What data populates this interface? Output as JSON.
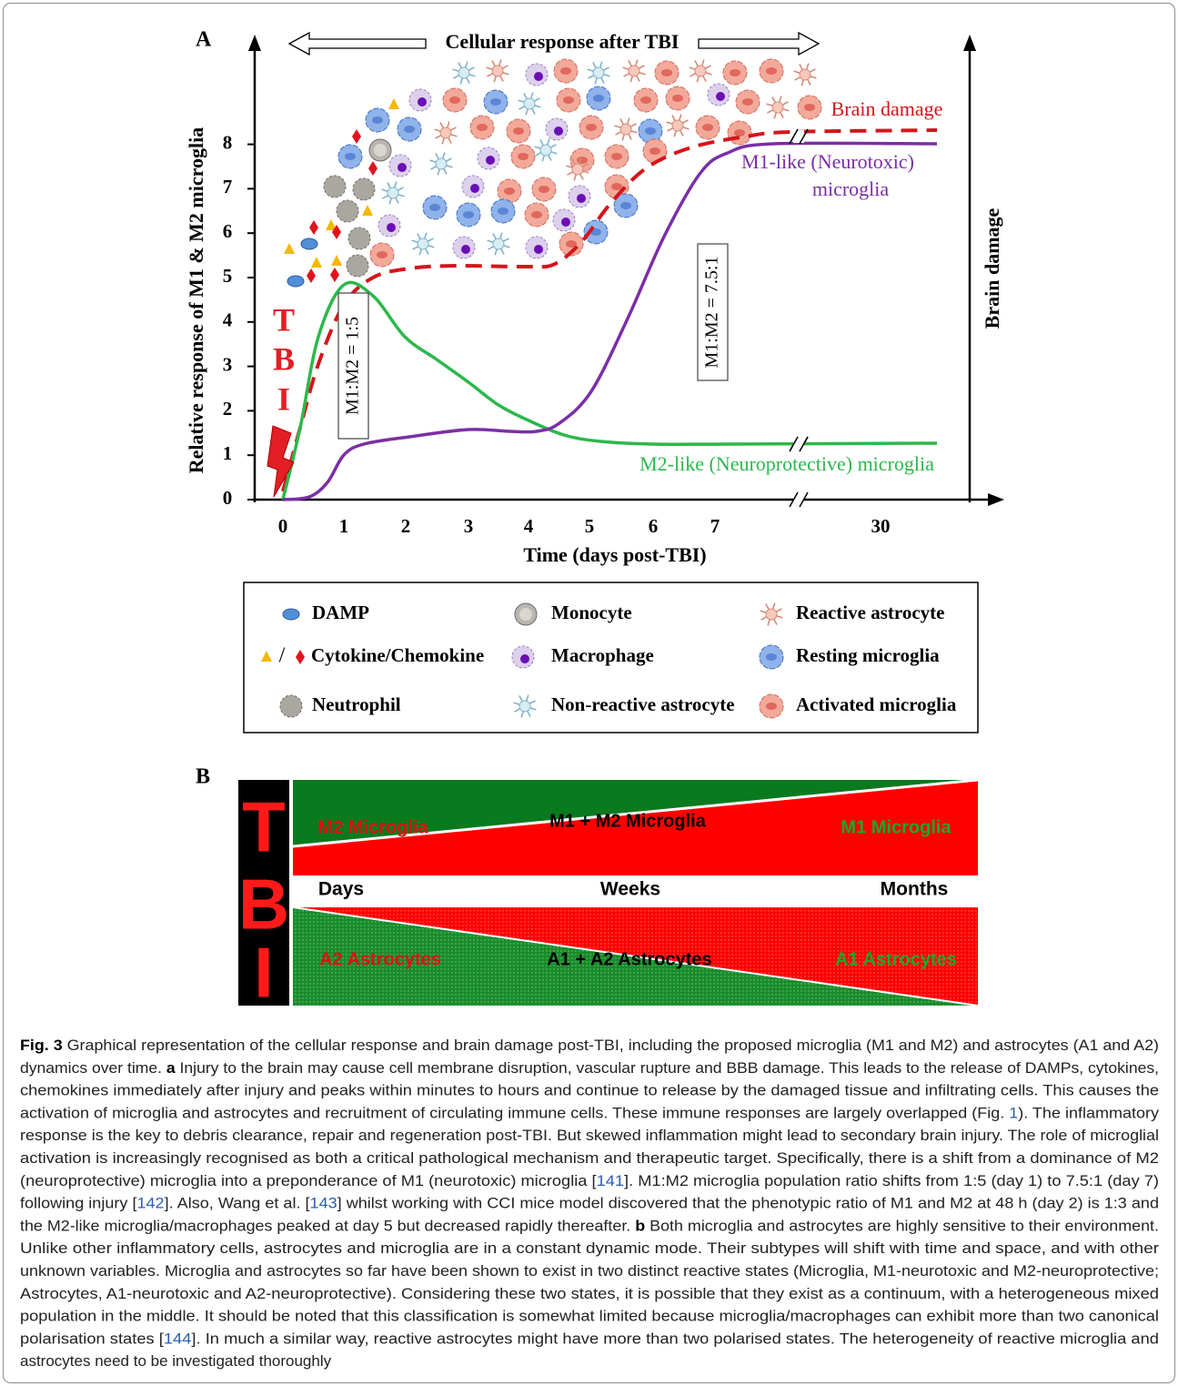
{
  "panel_a": {
    "label": "A",
    "top_label": "Cellular response after TBI",
    "y_label": "Relative response of M1 & M2 microglia",
    "y_ticks": [
      "0",
      "1",
      "2",
      "3",
      "4",
      "5",
      "6",
      "7",
      "8"
    ],
    "x_ticks": [
      "0",
      "1",
      "2",
      "3",
      "4",
      "5",
      "6",
      "7",
      "30"
    ],
    "x_label": "Time (days post-TBI)",
    "right_label": "Brain damage",
    "injury_letters": [
      "T",
      "B",
      "I"
    ],
    "curve_labels": {
      "brain_damage": "Brain damage",
      "m1": [
        "M1-like (Neurotoxic)",
        "microglia"
      ],
      "m2": "M2-like (Neuroprotective) microglia"
    },
    "ratio_labels": [
      "M1:M2 = 1:5",
      "M1:M2 = 7.5:1"
    ]
  },
  "legend": {
    "items": [
      "DAMP",
      "Monocyte",
      "Reactive astrocyte",
      "Cytokine/Chemokine",
      "Macrophage",
      "Resting microglia",
      "Neutrophil",
      "Non-reactive astrocyte",
      "Activated microglia"
    ],
    "separator": "/"
  },
  "panel_b": {
    "label": "B",
    "injury_letters": [
      "T",
      "B",
      "I"
    ],
    "microglia": {
      "left": "M2 Microglia",
      "middle": "M1 + M2 Microglia",
      "right": "M1 Microglia"
    },
    "timeline": [
      "Days",
      "Weeks",
      "Months"
    ],
    "astrocytes": {
      "left": "A2 Astrocytes",
      "middle": "A1 + A2 Astrocytes",
      "right": "A1 Astrocytes"
    }
  },
  "caption": {
    "lines": [
      [
        {
          "bold": "Fig. 3"
        },
        " Graphical representation of the cellular response and brain damage post-TBI, including the proposed microglia (M1 and M2) and astrocytes (A1 and A2)"
      ],
      [
        "dynamics over time. ",
        {
          "bold": "a"
        },
        " Injury to the brain may cause cell membrane disruption, vascular rupture and BBB damage. This leads to the release of DAMPs, cytokines,"
      ],
      [
        "chemokines immediately after injury and peaks within minutes to hours and continue to release by the damaged tissue and infiltrating cells. This causes the"
      ],
      [
        "activation of microglia and astrocytes and recruitment of circulating immune cells. These immune responses are largely overlapped (Fig. ",
        {
          "link": "1"
        },
        "). The inflammatory"
      ],
      [
        "response is the key to debris clearance, repair and regeneration post-TBI. But skewed inflammation might lead to secondary brain injury. The role of microglial"
      ],
      [
        "activation is increasingly recognised as both a critical pathological mechanism and therapeutic target. Specifically, there is a shift from a dominance of M2"
      ],
      [
        "(neuroprotective) microglia into a preponderance of M1 (neurotoxic) microglia [",
        {
          "link": "141"
        },
        "]. M1:M2 microglia population ratio shifts from 1:5 (day 1) to 7.5:1 (day 7)"
      ],
      [
        "following injury [",
        {
          "link": "142"
        },
        "]. Also, Wang et al. [",
        {
          "link": "143"
        },
        "] whilst working with CCI mice model discovered that the phenotypic ratio of M1 and M2 at 48 h (day 2) is 1:3 and"
      ],
      [
        "the M2-like microglia/macrophages peaked at day 5 but decreased rapidly thereafter. ",
        {
          "bold": "b"
        },
        " Both microglia and astrocytes are highly sensitive to their environment."
      ],
      [
        "Unlike other inflammatory cells, astrocytes and microglia are in a constant dynamic mode. Their subtypes will shift with time and space, and with other"
      ],
      [
        "unknown variables. Microglia and astrocytes so far have been shown to exist in two distinct reactive states (Microglia, M1-neurotoxic and M2-neuroprotective;"
      ],
      [
        "Astrocytes, A1-neurotoxic and A2-neuroprotective). Considering these two states, it is possible that they exist as a continuum, with a heterogeneous mixed"
      ],
      [
        "population in the middle. It should be noted that this classification is somewhat limited because microglia/macrophages can exhibit more than two canonical"
      ],
      [
        "polarisation states [",
        {
          "link": "144"
        },
        "]. In much a similar way, reactive astrocytes might have more than two polarised states. The heterogeneity of reactive microglia and"
      ],
      [
        "astrocytes need to be investigated thoroughly"
      ]
    ]
  }
}
